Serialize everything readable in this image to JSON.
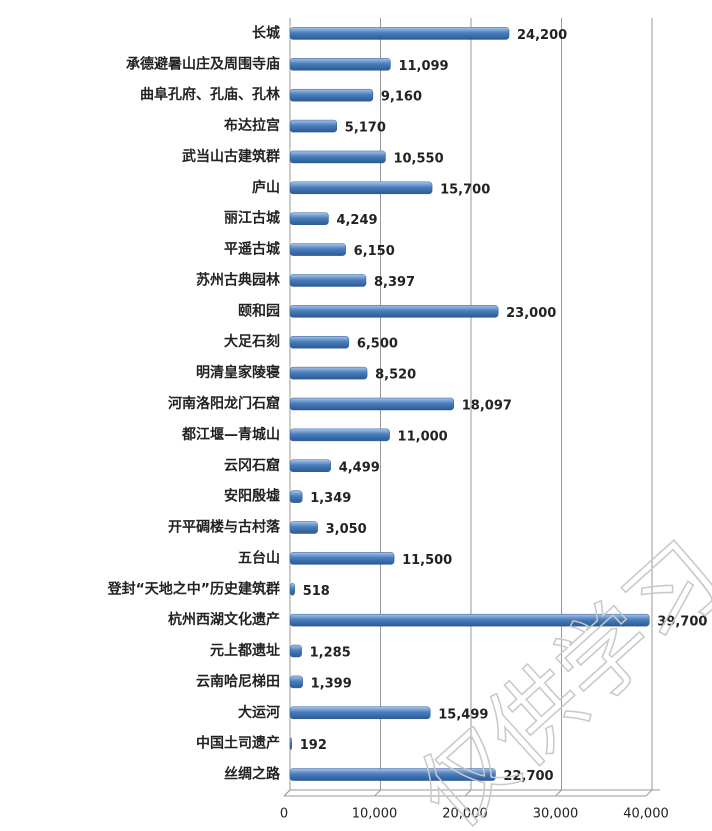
{
  "chart_data": {
    "type": "bar",
    "orientation": "horizontal",
    "categories": [
      "长城",
      "承德避暑山庄及周围寺庙",
      "曲阜孔府、孔庙、孔林",
      "布达拉宫",
      "武当山古建筑群",
      "庐山",
      "丽江古城",
      "平遥古城",
      "苏州古典园林",
      "颐和园",
      "大足石刻",
      "明清皇家陵寝",
      "河南洛阳龙门石窟",
      "都江堰—青城山",
      "云冈石窟",
      "安阳殷墟",
      "开平碉楼与古村落",
      "五台山",
      "登封“天地之中”历史建筑群",
      "杭州西湖文化遗产",
      "元上都遗址",
      "云南哈尼梯田",
      "大运河",
      "中国土司遗产",
      "丝绸之路"
    ],
    "values": [
      24200,
      11099,
      9160,
      5170,
      10550,
      15700,
      4249,
      6150,
      8397,
      23000,
      6500,
      8520,
      18097,
      11000,
      4499,
      1349,
      3050,
      11500,
      518,
      39700,
      1285,
      1399,
      15499,
      192,
      22700
    ],
    "value_labels": [
      "24,200",
      "11,099",
      "9,160",
      "5,170",
      "10,550",
      "15,700",
      "4,249",
      "6,150",
      "8,397",
      "23,000",
      "6,500",
      "8,520",
      "18,097",
      "11,000",
      "4,499",
      "1,349",
      "3,050",
      "11,500",
      "518",
      "39,700",
      "1,285",
      "1,399",
      "15,499",
      "192",
      "22,700"
    ],
    "color": "#4a7ebb",
    "xlim": [
      0,
      40000
    ],
    "xticks": [
      0,
      {
        "value": 10000,
        "label": "10,000"
      },
      {
        "value": 20000,
        "label": "20,000"
      },
      {
        "value": 30000,
        "label": "30,000"
      },
      {
        "value": 40000,
        "label": "40,000"
      }
    ],
    "grid": true,
    "watermark": "仅供学习"
  }
}
